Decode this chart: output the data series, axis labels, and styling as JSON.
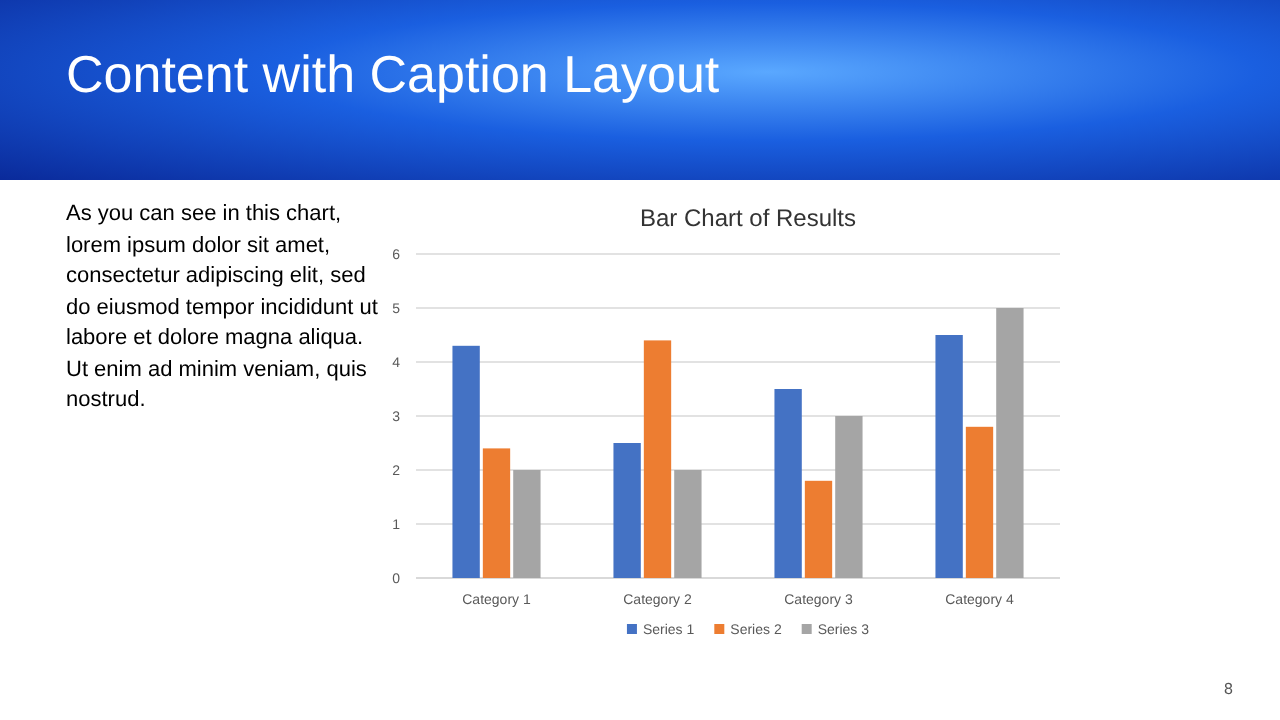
{
  "chart_data": {
    "type": "bar",
    "title": "Bar Chart of Results",
    "annotations": [
      "Content with Caption Layout",
      "As you can see in this chart, lorem ipsum dolor sit amet, consectetur adipiscing elit, sed do eiusmod tempor incididunt ut labore et dolore magna aliqua. Ut enim ad minim veniam, quis nostrud.",
      "8"
    ],
    "categories": [
      "Category 1",
      "Category 2",
      "Category 3",
      "Category 4"
    ],
    "series": [
      {
        "name": "Series 1",
        "color": "#4472c4",
        "values": [
          4.3,
          2.5,
          3.5,
          4.5
        ]
      },
      {
        "name": "Series 2",
        "color": "#ed7d31",
        "values": [
          2.4,
          4.4,
          1.8,
          2.8
        ]
      },
      {
        "name": "Series 3",
        "color": "#a5a5a5",
        "values": [
          2,
          2,
          3,
          5
        ]
      }
    ],
    "ylim": [
      0,
      6
    ],
    "yticks": [
      0,
      1,
      2,
      3,
      4,
      5,
      6
    ],
    "grid": "y",
    "legend": "bottom"
  }
}
